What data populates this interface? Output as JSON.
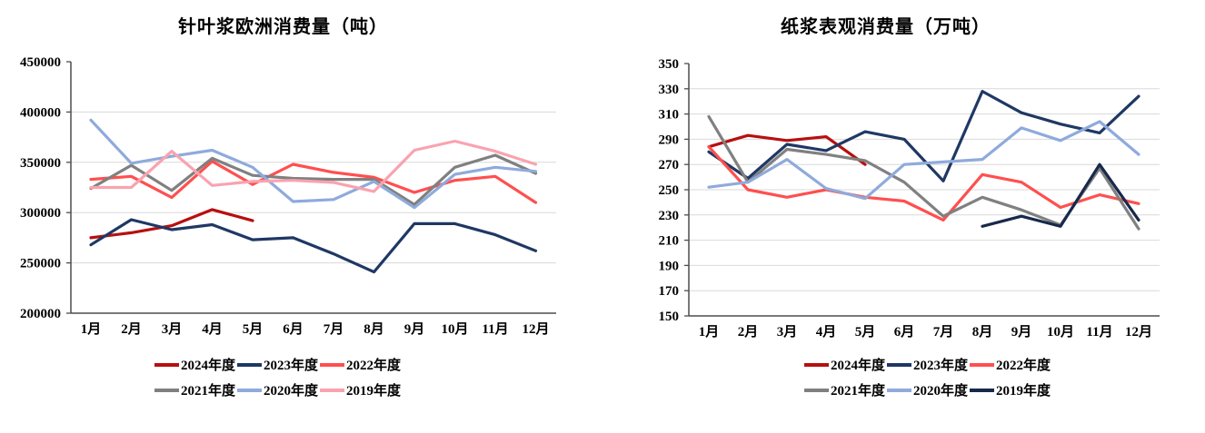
{
  "chart_data": [
    {
      "type": "line",
      "title": "针叶浆欧洲消费量（吨）",
      "x_labels": [
        "1月",
        "2月",
        "3月",
        "4月",
        "5月",
        "6月",
        "7月",
        "8月",
        "9月",
        "10月",
        "11月",
        "12月"
      ],
      "ylim": [
        200000,
        450000
      ],
      "yticks": [
        450000,
        400000,
        350000,
        300000,
        250000,
        200000
      ],
      "grid": "horizontal",
      "legend_position": "bottom",
      "colors": {
        "grid": "#D9D9D9",
        "axis": "#4D4D4D",
        "text": "#000000"
      },
      "series": [
        {
          "name": "2024年度",
          "color": "#B70F0F",
          "values": [
            275000,
            280000,
            287000,
            303000,
            292000
          ]
        },
        {
          "name": "2023年度",
          "color": "#1F3864",
          "values": [
            268000,
            293000,
            283000,
            288000,
            273000,
            275000,
            259000,
            241000,
            289000,
            289000,
            278000,
            262000
          ]
        },
        {
          "name": "2022年度",
          "color": "#FF4F4F",
          "values": [
            333000,
            336000,
            315000,
            351000,
            328000,
            348000,
            340000,
            335000,
            320000,
            332000,
            336000,
            310000
          ]
        },
        {
          "name": "2021年度",
          "color": "#808080",
          "values": [
            324000,
            347000,
            322000,
            354000,
            337000,
            334000,
            333000,
            333000,
            308000,
            345000,
            357000,
            339000
          ]
        },
        {
          "name": "2020年度",
          "color": "#8FAADC",
          "values": [
            392000,
            349000,
            356000,
            362000,
            345000,
            311000,
            313000,
            331000,
            305000,
            338000,
            345000,
            341000
          ]
        },
        {
          "name": "2019年度",
          "color": "#F9A3B0",
          "values": [
            325000,
            325000,
            361000,
            327000,
            331000,
            332000,
            330000,
            321000,
            362000,
            371000,
            361000,
            348000
          ]
        }
      ]
    },
    {
      "type": "line",
      "title": "纸浆表观消费量（万吨）",
      "x_labels": [
        "1月",
        "2月",
        "3月",
        "4月",
        "5月",
        "6月",
        "7月",
        "8月",
        "9月",
        "10月",
        "11月",
        "12月"
      ],
      "ylim": [
        150,
        350
      ],
      "yticks": [
        350,
        330,
        310,
        290,
        270,
        250,
        230,
        210,
        190,
        170,
        150
      ],
      "grid": "horizontal",
      "legend_position": "bottom",
      "colors": {
        "grid": "#D9D9D9",
        "axis": "#4D4D4D",
        "text": "#000000"
      },
      "series": [
        {
          "name": "2024年度",
          "color": "#B70F0F",
          "values": [
            284,
            293,
            289,
            292,
            270
          ]
        },
        {
          "name": "2023年度",
          "color": "#1F3864",
          "values": [
            280,
            259,
            286,
            281,
            296,
            290,
            257,
            328,
            311,
            302,
            295,
            324
          ]
        },
        {
          "name": "2022年度",
          "color": "#FF4F4F",
          "values": [
            284,
            250,
            244,
            250,
            244,
            241,
            226,
            262,
            256,
            236,
            246,
            239
          ]
        },
        {
          "name": "2021年度",
          "color": "#808080",
          "values": [
            308,
            256,
            282,
            278,
            273,
            256,
            229,
            244,
            234,
            222,
            267,
            219
          ]
        },
        {
          "name": "2020年度",
          "color": "#8FAADC",
          "values": [
            252,
            256,
            274,
            251,
            243,
            270,
            272,
            274,
            299,
            289,
            304,
            278
          ]
        },
        {
          "name": "2019年度",
          "color": "#17294B",
          "values": [
            null,
            null,
            null,
            null,
            null,
            null,
            null,
            221,
            229,
            221,
            270,
            226
          ]
        }
      ]
    }
  ]
}
